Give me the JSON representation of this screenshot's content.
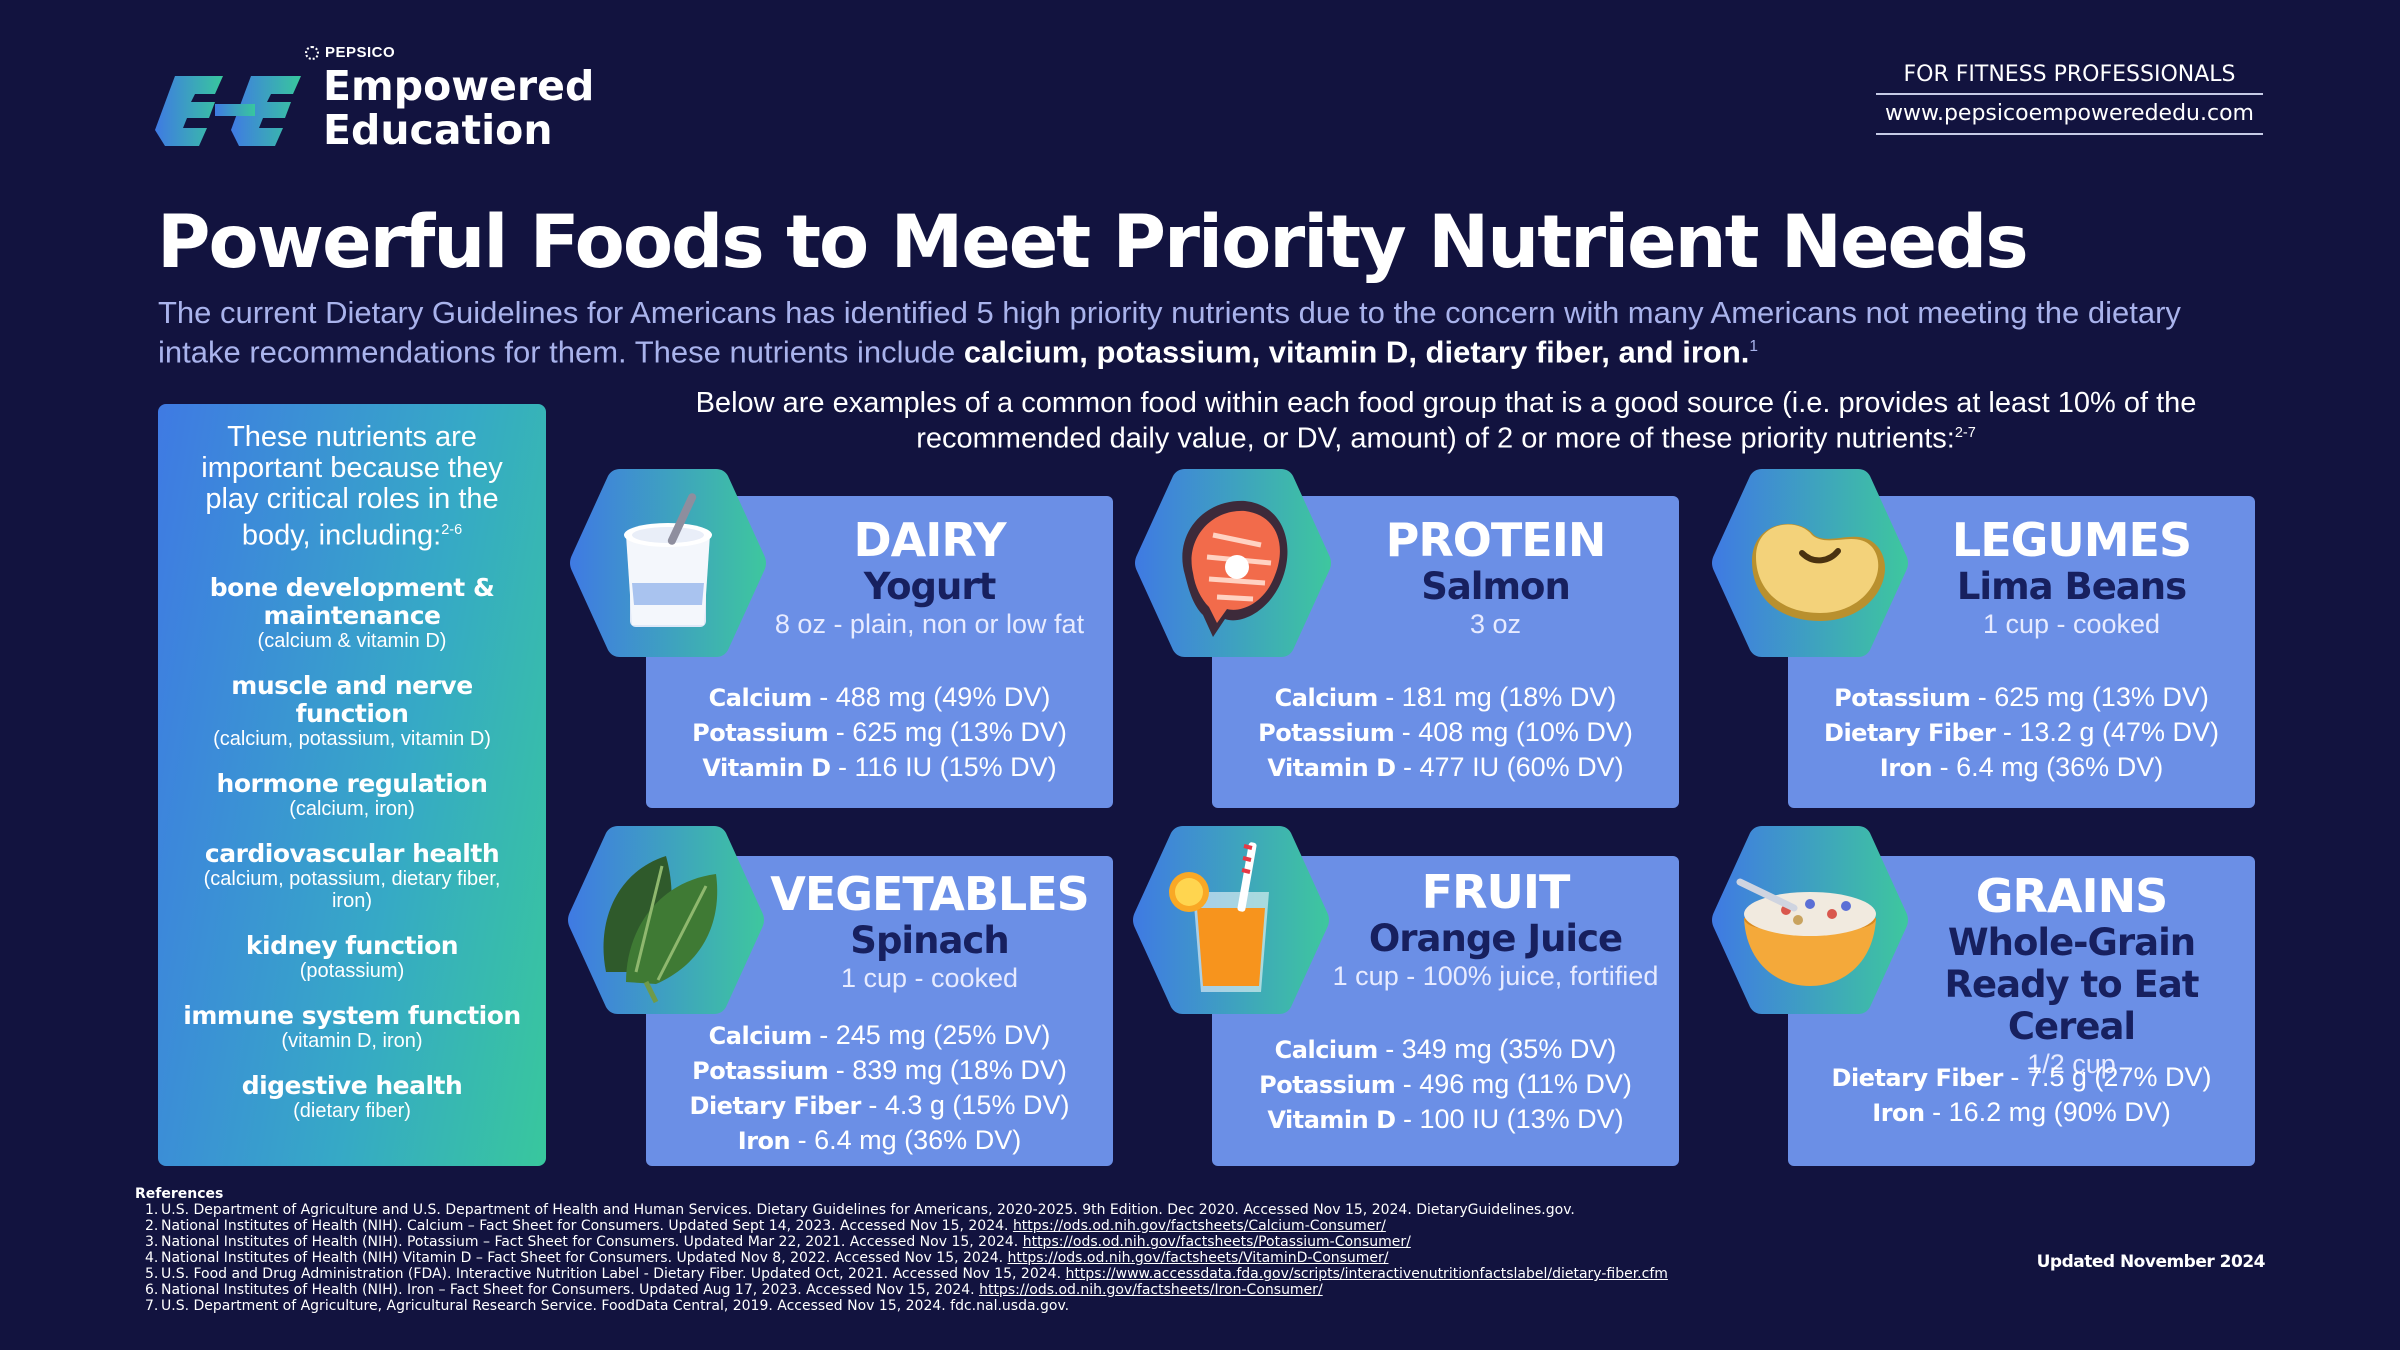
{
  "header": {
    "pepsico": "PEPSICO",
    "brand_line1": "Empowered",
    "brand_line2": "Education",
    "audience": "FOR FITNESS PROFESSIONALS",
    "website": "www.pepsicoempowerededu.com"
  },
  "title": "Powerful Foods to Meet Priority Nutrient Needs",
  "intro": {
    "text": "The current Dietary Guidelines for Americans has identified 5 high priority nutrients due to the concern with many Americans not meeting the dietary intake recommendations for them. These nutrients include ",
    "bold": "calcium, potassium, vitamin D, dietary fiber, and iron.",
    "sup": "1"
  },
  "panel": {
    "intro": "These nutrients are important because they play critical roles in the body, including:",
    "intro_sup": "2-6",
    "roles": [
      {
        "name": "bone development & maintenance",
        "sub": "(calcium & vitamin D)"
      },
      {
        "name": "muscle and nerve function",
        "sub": "(calcium, potassium, vitamin D)"
      },
      {
        "name": "hormone regulation",
        "sub": "(calcium, iron)"
      },
      {
        "name": "cardiovascular health",
        "sub": "(calcium, potassium, dietary fiber, iron)"
      },
      {
        "name": "kidney function",
        "sub": "(potassium)"
      },
      {
        "name": "immune system function",
        "sub": "(vitamin D, iron)"
      },
      {
        "name": "digestive health",
        "sub": "(dietary fiber)"
      }
    ]
  },
  "lead": {
    "text": "Below are examples of a common food within each food group that is a good source (i.e. provides at least 10% of the recommended daily value, or DV, amount) of 2 or more of these priority nutrients:",
    "sup": "2-7"
  },
  "cards": [
    {
      "group": "DAIRY",
      "food": "Yogurt",
      "serving": "8 oz - plain, non or low fat",
      "icon": "yogurt-icon",
      "nutrients": [
        {
          "name": "Calcium",
          "value": " - 488 mg (49% DV)"
        },
        {
          "name": "Potassium",
          "value": " - 625 mg (13% DV)"
        },
        {
          "name": "Vitamin D",
          "value": " - 116 IU (15% DV)"
        }
      ]
    },
    {
      "group": "PROTEIN",
      "food": "Salmon",
      "serving": "3 oz",
      "icon": "salmon-icon",
      "nutrients": [
        {
          "name": "Calcium",
          "value": " - 181 mg (18% DV)"
        },
        {
          "name": "Potassium",
          "value": " - 408 mg (10% DV)"
        },
        {
          "name": "Vitamin D",
          "value": " - 477 IU (60% DV)"
        }
      ]
    },
    {
      "group": "LEGUMES",
      "food": "Lima Beans",
      "serving": "1 cup - cooked",
      "icon": "bean-icon",
      "nutrients": [
        {
          "name": "Potassium",
          "value": " - 625 mg (13% DV)"
        },
        {
          "name": "Dietary Fiber",
          "value": " - 13.2 g (47% DV)"
        },
        {
          "name": "Iron",
          "value": " - 6.4 mg (36% DV)"
        }
      ]
    },
    {
      "group": "VEGETABLES",
      "food": "Spinach",
      "serving": "1 cup - cooked",
      "icon": "spinach-icon",
      "nutrients": [
        {
          "name": "Calcium",
          "value": " - 245 mg (25% DV)"
        },
        {
          "name": "Potassium",
          "value": " - 839 mg (18% DV)"
        },
        {
          "name": "Dietary Fiber",
          "value": " - 4.3 g (15% DV)"
        },
        {
          "name": "Iron",
          "value": " - 6.4 mg (36% DV)"
        }
      ]
    },
    {
      "group": "FRUIT",
      "food": "Orange Juice",
      "serving": "1 cup - 100% juice, fortified",
      "icon": "orange-juice-icon",
      "nutrients": [
        {
          "name": "Calcium",
          "value": " - 349 mg (35% DV)"
        },
        {
          "name": "Potassium",
          "value": " - 496 mg (11% DV)"
        },
        {
          "name": "Vitamin D",
          "value": " - 100 IU (13% DV)"
        }
      ]
    },
    {
      "group": "GRAINS",
      "food": "Whole-Grain Ready to Eat Cereal",
      "serving": "1/2 cup",
      "icon": "cereal-bowl-icon",
      "nutrients": [
        {
          "name": "Dietary Fiber",
          "value": " - 7.5 g (27% DV)"
        },
        {
          "name": "Iron",
          "value": " - 16.2 mg (90% DV)"
        }
      ]
    }
  ],
  "references": {
    "title": "References",
    "items": [
      {
        "num": "1.",
        "text": "U.S. Department of Agriculture and U.S. Department of Health and Human Services. Dietary Guidelines for Americans, 2020-2025. 9th Edition. Dec 2020. Accessed Nov 15, 2024. DietaryGuidelines.gov.",
        "link": ""
      },
      {
        "num": "2.",
        "text": "National Institutes of Health (NIH). Calcium – Fact Sheet for Consumers. Updated Sept 14, 2023. Accessed Nov 15, 2024. ",
        "link": "https://ods.od.nih.gov/factsheets/Calcium-Consumer/"
      },
      {
        "num": "3.",
        "text": "National Institutes of Health (NIH). Potassium – Fact Sheet for Consumers. Updated Mar 22, 2021. Accessed Nov 15, 2024. ",
        "link": "https://ods.od.nih.gov/factsheets/Potassium-Consumer/"
      },
      {
        "num": "4.",
        "text": "National Institutes of Health (NIH) Vitamin D – Fact Sheet for Consumers. Updated Nov 8, 2022. Accessed Nov 15, 2024. ",
        "link": "https://ods.od.nih.gov/factsheets/VitaminD-Consumer/"
      },
      {
        "num": "5.",
        "text": "U.S. Food and Drug Administration (FDA). Interactive Nutrition Label - Dietary Fiber. Updated Oct, 2021. Accessed Nov 15, 2024. ",
        "link": "https://www.accessdata.fda.gov/scripts/interactivenutritionfactslabel/dietary-fiber.cfm"
      },
      {
        "num": "6.",
        "text": "National Institutes of Health (NIH). Iron – Fact Sheet for Consumers. Updated Aug 17, 2023. Accessed Nov 15, 2024. ",
        "link": "https://ods.od.nih.gov/factsheets/Iron-Consumer/"
      },
      {
        "num": "7.",
        "text": "U.S. Department of Agriculture, Agricultural Research Service. FoodData Central, 2019. Accessed Nov 15, 2024. fdc.nal.usda.gov.",
        "link": ""
      }
    ]
  },
  "updated": "Updated November 2024",
  "colors": {
    "background": "#12133f",
    "card": "#6b8fe6",
    "food_name": "#17205f",
    "hex_gradient_start": "#3f7ae3",
    "hex_gradient_end": "#3ec79e"
  }
}
